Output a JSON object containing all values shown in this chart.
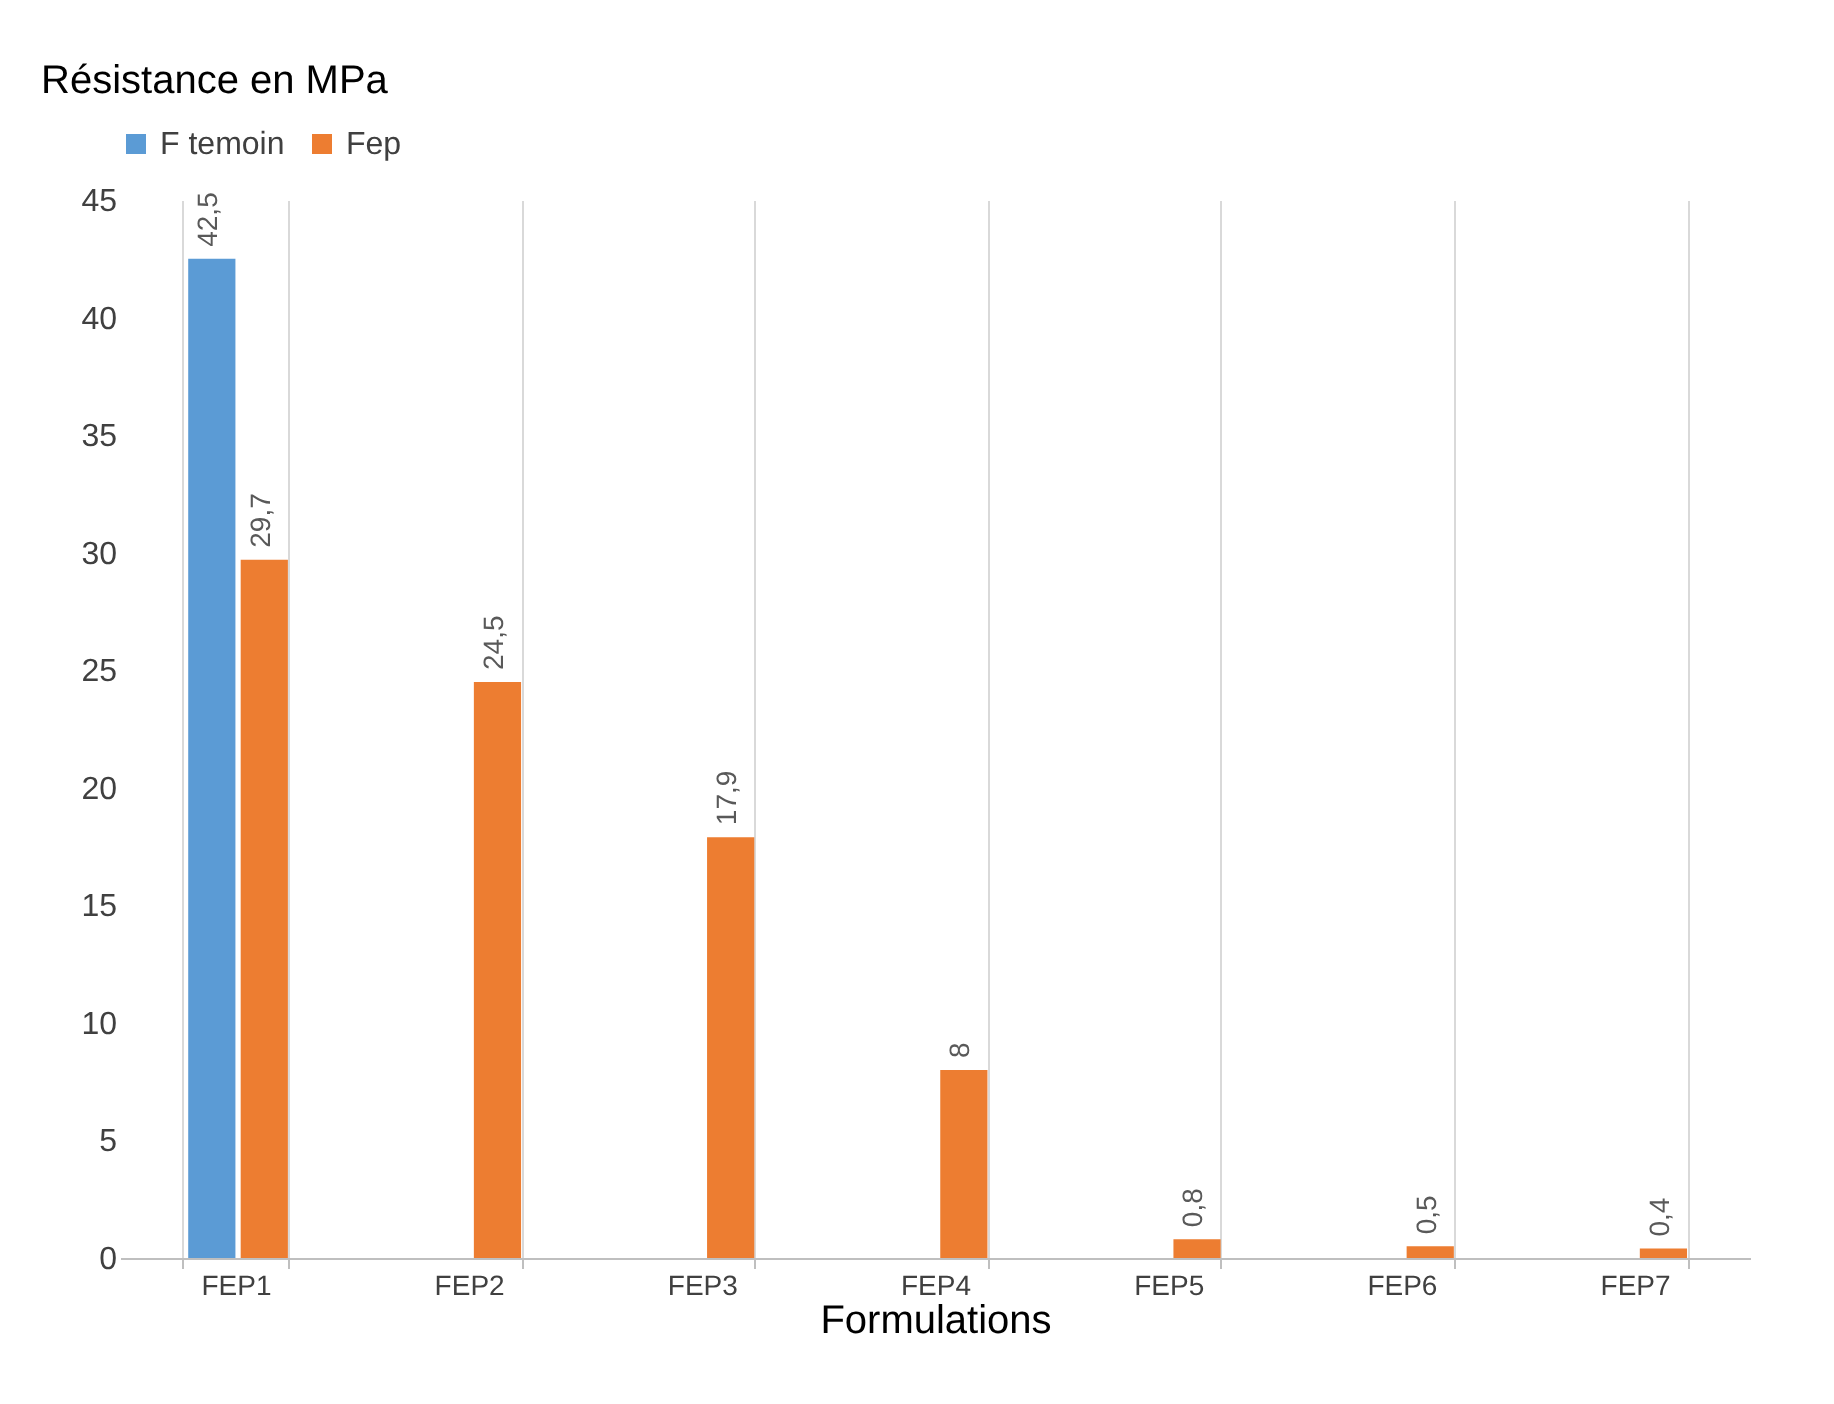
{
  "chart_data": {
    "type": "bar",
    "ylabel": "Résistance en MPa",
    "xlabel": "Formulations",
    "categories": [
      "FEP1",
      "FEP2",
      "FEP3",
      "FEP4",
      "FEP5",
      "FEP6",
      "FEP7"
    ],
    "series": [
      {
        "name": "F temoin",
        "color": "#5b9bd5",
        "values": [
          42.5,
          null,
          null,
          null,
          null,
          null,
          null
        ],
        "value_labels": [
          "42,5",
          null,
          null,
          null,
          null,
          null,
          null
        ]
      },
      {
        "name": "Fep",
        "color": "#ed7d31",
        "values": [
          29.7,
          24.5,
          17.9,
          8,
          0.8,
          0.5,
          0.4
        ],
        "value_labels": [
          "29,7",
          "24,5",
          "17,9",
          "8",
          "0,8",
          "0,5",
          "0,4"
        ]
      }
    ],
    "ylim": [
      0,
      45
    ],
    "yticks": [
      0,
      5,
      10,
      15,
      20,
      25,
      30,
      35,
      40,
      45
    ],
    "grid": "x",
    "legend": "top"
  }
}
